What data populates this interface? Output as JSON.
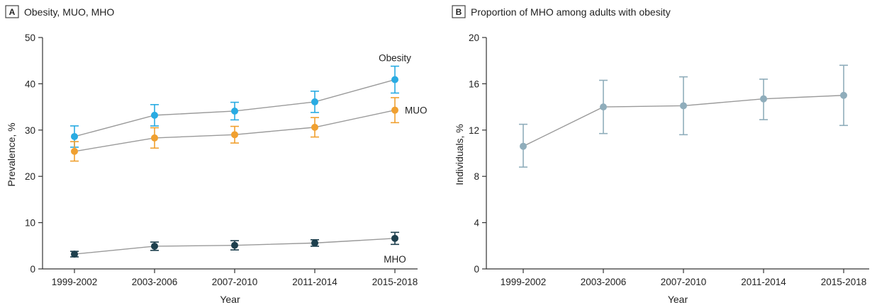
{
  "chart_data": [
    {
      "type": "line",
      "panel_letter": "A",
      "title": "Obesity, MUO, MHO",
      "xlabel": "Year",
      "ylabel": "Prevalence, %",
      "categories": [
        "1999-2002",
        "2003-2006",
        "2007-2010",
        "2011-2014",
        "2015-2018"
      ],
      "ylim": [
        0,
        50
      ],
      "yticks": [
        0,
        10,
        20,
        30,
        40,
        50
      ],
      "grid": false,
      "series": [
        {
          "name": "Obesity",
          "color": "#29abe2",
          "values": [
            28.6,
            33.2,
            34.1,
            36.1,
            40.9
          ],
          "lower": [
            26.3,
            30.9,
            32.2,
            33.8,
            38.0
          ],
          "upper": [
            30.9,
            35.5,
            36.0,
            38.4,
            43.8
          ]
        },
        {
          "name": "MUO",
          "color": "#f0a030",
          "values": [
            25.4,
            28.3,
            29.0,
            30.6,
            34.3
          ],
          "lower": [
            23.3,
            26.1,
            27.2,
            28.5,
            31.6
          ],
          "upper": [
            27.5,
            30.5,
            30.8,
            32.7,
            37.0
          ]
        },
        {
          "name": "MHO",
          "color": "#1d3f4d",
          "values": [
            3.2,
            4.9,
            5.1,
            5.6,
            6.6
          ],
          "lower": [
            2.6,
            4.0,
            4.1,
            4.9,
            5.3
          ],
          "upper": [
            3.8,
            5.8,
            6.1,
            6.3,
            7.9
          ]
        }
      ]
    },
    {
      "type": "line",
      "panel_letter": "B",
      "title": "Proportion of MHO among adults with obesity",
      "xlabel": "Year",
      "ylabel": "Individuals, %",
      "categories": [
        "1999-2002",
        "2003-2006",
        "2007-2010",
        "2011-2014",
        "2015-2018"
      ],
      "ylim": [
        0,
        20
      ],
      "yticks": [
        0,
        4,
        8,
        12,
        16,
        20
      ],
      "grid": false,
      "series": [
        {
          "color": "#8fadbb",
          "values": [
            10.6,
            14.0,
            14.1,
            14.7,
            15.0
          ],
          "lower": [
            8.8,
            11.7,
            11.6,
            12.9,
            12.4
          ],
          "upper": [
            12.5,
            16.3,
            16.6,
            16.4,
            17.6
          ]
        }
      ]
    }
  ]
}
